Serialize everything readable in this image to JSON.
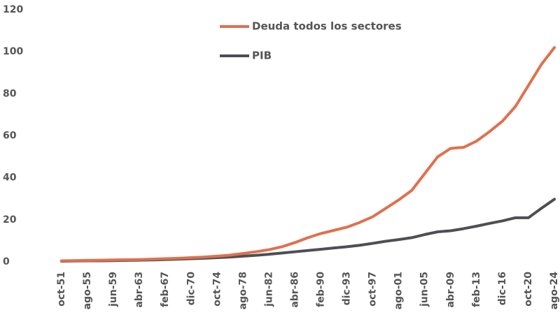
{
  "chart_data": {
    "type": "line",
    "categories": [
      "oct-51",
      null,
      "ago-55",
      null,
      "jun-59",
      null,
      "abr-63",
      null,
      "feb-67",
      null,
      "dic-70",
      null,
      "oct-74",
      null,
      "ago-78",
      null,
      "jun-82",
      null,
      "abr-86",
      null,
      "feb-90",
      null,
      "dic-93",
      null,
      "oct-97",
      null,
      "ago-01",
      null,
      "jun-05",
      null,
      "abr-09",
      null,
      "feb-13",
      null,
      "dic-16",
      null,
      "oct-20",
      null,
      "ago-24"
    ],
    "series": [
      {
        "name": "Deuda todos los sectores",
        "color": "#e0704f",
        "values": [
          0.5,
          0.6,
          0.7,
          0.8,
          0.9,
          1.0,
          1.1,
          1.3,
          1.5,
          1.7,
          2.0,
          2.3,
          2.7,
          3.2,
          4.0,
          4.8,
          5.8,
          7.2,
          9.2,
          11.5,
          13.5,
          15.0,
          16.5,
          18.8,
          21.5,
          25.5,
          29.5,
          34.0,
          42,
          50,
          54,
          54.5,
          57.5,
          62,
          67,
          74,
          84,
          94,
          102
        ]
      },
      {
        "name": "PIB",
        "color": "#4d4f53",
        "values": [
          0.3,
          0.4,
          0.5,
          0.5,
          0.6,
          0.7,
          0.8,
          0.9,
          1.1,
          1.3,
          1.5,
          1.7,
          2.0,
          2.3,
          2.7,
          3.1,
          3.6,
          4.2,
          4.8,
          5.4,
          6.0,
          6.6,
          7.2,
          7.9,
          8.8,
          9.8,
          10.6,
          11.5,
          13.0,
          14.3,
          14.8,
          15.8,
          17.0,
          18.3,
          19.5,
          21.0,
          21.0,
          25.5,
          29.8
        ]
      }
    ],
    "ylim": [
      0,
      120
    ],
    "yticks": [
      0,
      20,
      40,
      60,
      80,
      100,
      120
    ],
    "grid": false
  }
}
